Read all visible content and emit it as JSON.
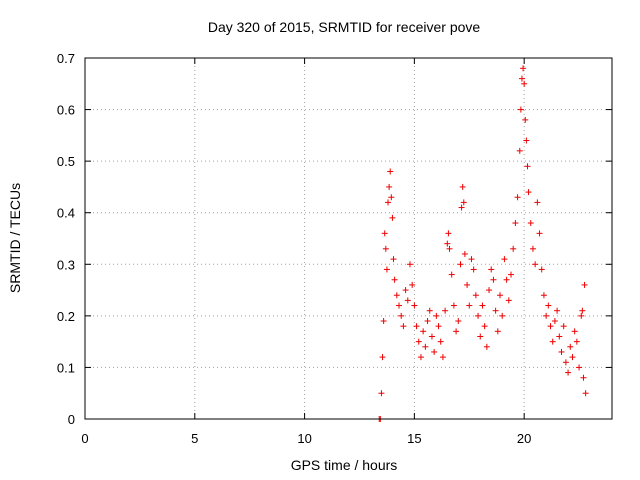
{
  "chart_data": {
    "type": "scatter",
    "title": "Day 320 of 2015, SRMTID for receiver pove",
    "xlabel": "GPS time / hours",
    "ylabel": "SRMTID / TECUs",
    "xlim": [
      0,
      24
    ],
    "ylim": [
      0,
      0.7
    ],
    "x_ticks": [
      "0",
      "5",
      "10",
      "15",
      "20"
    ],
    "y_ticks": [
      "0",
      "0.1",
      "0.2",
      "0.3",
      "0.4",
      "0.5",
      "0.6",
      "0.7"
    ],
    "x_tick_values": [
      0,
      5,
      10,
      15,
      20
    ],
    "y_tick_values": [
      0,
      0.1,
      0.2,
      0.3,
      0.4,
      0.5,
      0.6,
      0.7
    ],
    "grid": true,
    "marker": "plus",
    "series_color": "#ee0000",
    "x_range_of_data": [
      13.4,
      22.8
    ],
    "series": [
      {
        "points": [
          [
            13.4,
            0.0
          ],
          [
            13.45,
            0.0
          ],
          [
            13.5,
            0.05
          ],
          [
            13.55,
            0.12
          ],
          [
            13.6,
            0.19
          ],
          [
            13.65,
            0.36
          ],
          [
            13.7,
            0.33
          ],
          [
            13.75,
            0.29
          ],
          [
            13.8,
            0.42
          ],
          [
            13.85,
            0.45
          ],
          [
            13.9,
            0.48
          ],
          [
            13.95,
            0.43
          ],
          [
            14.0,
            0.39
          ],
          [
            14.05,
            0.31
          ],
          [
            14.1,
            0.27
          ],
          [
            14.2,
            0.24
          ],
          [
            14.3,
            0.22
          ],
          [
            14.4,
            0.2
          ],
          [
            14.5,
            0.18
          ],
          [
            14.6,
            0.25
          ],
          [
            14.7,
            0.23
          ],
          [
            14.8,
            0.3
          ],
          [
            14.9,
            0.26
          ],
          [
            15.0,
            0.22
          ],
          [
            15.1,
            0.18
          ],
          [
            15.2,
            0.15
          ],
          [
            15.3,
            0.12
          ],
          [
            15.4,
            0.17
          ],
          [
            15.5,
            0.14
          ],
          [
            15.6,
            0.19
          ],
          [
            15.7,
            0.21
          ],
          [
            15.8,
            0.16
          ],
          [
            15.9,
            0.13
          ],
          [
            16.0,
            0.2
          ],
          [
            16.1,
            0.18
          ],
          [
            16.2,
            0.15
          ],
          [
            16.3,
            0.12
          ],
          [
            16.4,
            0.21
          ],
          [
            16.5,
            0.34
          ],
          [
            16.55,
            0.36
          ],
          [
            16.6,
            0.33
          ],
          [
            16.7,
            0.28
          ],
          [
            16.8,
            0.22
          ],
          [
            16.9,
            0.17
          ],
          [
            17.0,
            0.19
          ],
          [
            17.1,
            0.3
          ],
          [
            17.15,
            0.41
          ],
          [
            17.2,
            0.45
          ],
          [
            17.25,
            0.42
          ],
          [
            17.3,
            0.32
          ],
          [
            17.4,
            0.26
          ],
          [
            17.5,
            0.22
          ],
          [
            17.6,
            0.31
          ],
          [
            17.7,
            0.29
          ],
          [
            17.8,
            0.24
          ],
          [
            17.9,
            0.2
          ],
          [
            18.0,
            0.16
          ],
          [
            18.1,
            0.22
          ],
          [
            18.2,
            0.18
          ],
          [
            18.3,
            0.14
          ],
          [
            18.4,
            0.25
          ],
          [
            18.5,
            0.29
          ],
          [
            18.6,
            0.27
          ],
          [
            18.7,
            0.21
          ],
          [
            18.8,
            0.17
          ],
          [
            18.9,
            0.24
          ],
          [
            19.0,
            0.2
          ],
          [
            19.1,
            0.31
          ],
          [
            19.2,
            0.27
          ],
          [
            19.3,
            0.23
          ],
          [
            19.4,
            0.28
          ],
          [
            19.5,
            0.33
          ],
          [
            19.6,
            0.38
          ],
          [
            19.7,
            0.43
          ],
          [
            19.8,
            0.52
          ],
          [
            19.85,
            0.6
          ],
          [
            19.9,
            0.66
          ],
          [
            19.95,
            0.68
          ],
          [
            20.0,
            0.65
          ],
          [
            20.05,
            0.58
          ],
          [
            20.1,
            0.54
          ],
          [
            20.15,
            0.49
          ],
          [
            20.2,
            0.44
          ],
          [
            20.3,
            0.38
          ],
          [
            20.4,
            0.33
          ],
          [
            20.5,
            0.3
          ],
          [
            20.6,
            0.42
          ],
          [
            20.7,
            0.36
          ],
          [
            20.8,
            0.29
          ],
          [
            20.9,
            0.24
          ],
          [
            21.0,
            0.2
          ],
          [
            21.1,
            0.22
          ],
          [
            21.2,
            0.18
          ],
          [
            21.3,
            0.15
          ],
          [
            21.4,
            0.19
          ],
          [
            21.5,
            0.21
          ],
          [
            21.6,
            0.16
          ],
          [
            21.7,
            0.13
          ],
          [
            21.8,
            0.18
          ],
          [
            21.9,
            0.11
          ],
          [
            22.0,
            0.09
          ],
          [
            22.1,
            0.14
          ],
          [
            22.2,
            0.12
          ],
          [
            22.3,
            0.17
          ],
          [
            22.4,
            0.15
          ],
          [
            22.5,
            0.1
          ],
          [
            22.6,
            0.2
          ],
          [
            22.65,
            0.21
          ],
          [
            22.7,
            0.08
          ],
          [
            22.75,
            0.26
          ],
          [
            22.8,
            0.05
          ]
        ]
      }
    ]
  }
}
